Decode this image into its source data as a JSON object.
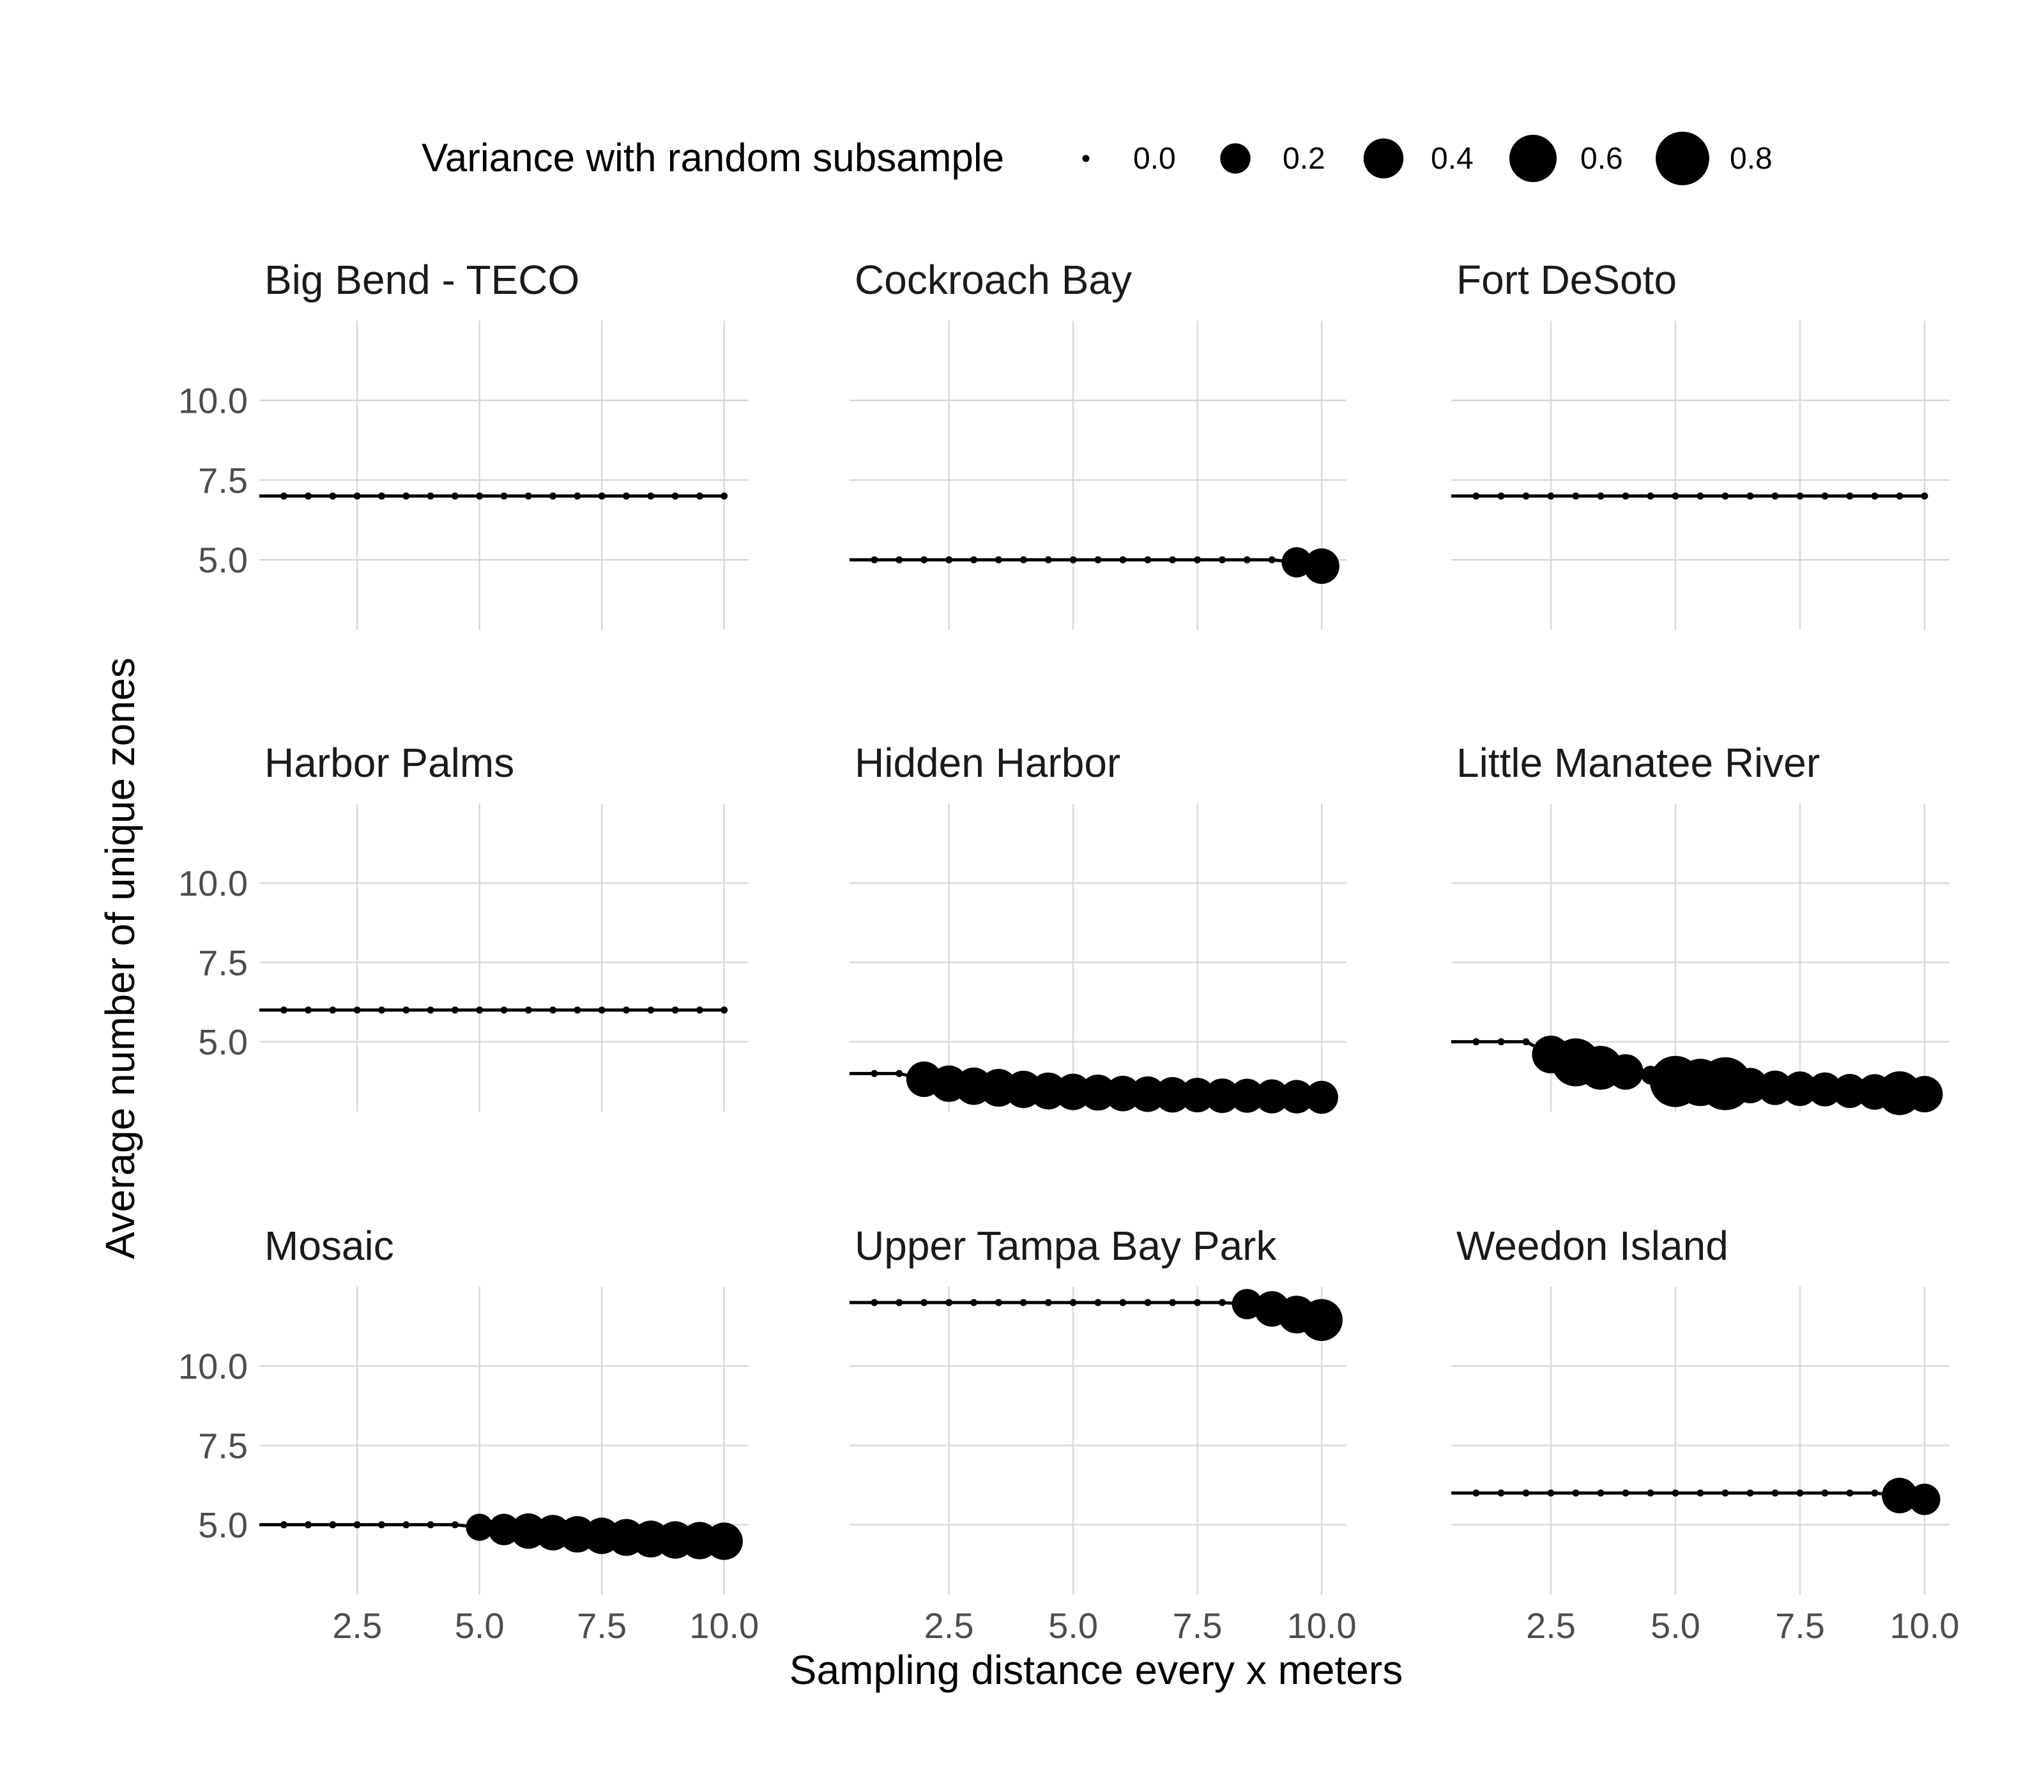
{
  "chart_data": {
    "type": "scatter",
    "facet_layout": "3x3",
    "xlabel": "Sampling distance every x meters",
    "ylabel": "Average number of unique zones",
    "x_ticks": [
      "2.5",
      "5.0",
      "7.5",
      "10.0"
    ],
    "y_ticks": [
      "5.0",
      "7.5",
      "10.0"
    ],
    "xlim": [
      0.5,
      10.5
    ],
    "ylim": [
      2.8,
      12.5
    ],
    "grid": true,
    "legend": {
      "title": "Variance with random subsample",
      "placement": "top",
      "breaks": [
        "0.0",
        "0.2",
        "0.4",
        "0.6",
        "0.8"
      ],
      "values": [
        0.0,
        0.2,
        0.4,
        0.6,
        0.8
      ]
    },
    "x": [
      0.5,
      1,
      1.5,
      2,
      2.5,
      3,
      3.5,
      4,
      4.5,
      5,
      5.5,
      6,
      6.5,
      7,
      7.5,
      8,
      8.5,
      9,
      9.5,
      10
    ],
    "facets": [
      {
        "title": "Big Bend - TECO",
        "y": [
          7,
          7,
          7,
          7,
          7,
          7,
          7,
          7,
          7,
          7,
          7,
          7,
          7,
          7,
          7,
          7,
          7,
          7,
          7,
          7
        ],
        "size": [
          0,
          0,
          0,
          0,
          0,
          0,
          0,
          0,
          0,
          0,
          0,
          0,
          0,
          0,
          0,
          0,
          0,
          0,
          0,
          0
        ]
      },
      {
        "title": "Cockroach Bay",
        "y": [
          5,
          5,
          5,
          5,
          5,
          5,
          5,
          5,
          5,
          5,
          5,
          5,
          5,
          5,
          5,
          5,
          5,
          5,
          4.92,
          4.8
        ],
        "size": [
          0,
          0,
          0,
          0,
          0,
          0,
          0,
          0,
          0,
          0,
          0,
          0,
          0,
          0,
          0,
          0,
          0,
          0,
          0.2,
          0.3
        ]
      },
      {
        "title": "Fort DeSoto",
        "y": [
          7,
          7,
          7,
          7,
          7,
          7,
          7,
          7,
          7,
          7,
          7,
          7,
          7,
          7,
          7,
          7,
          7,
          7,
          7,
          7
        ],
        "size": [
          0,
          0,
          0,
          0,
          0,
          0,
          0,
          0,
          0,
          0,
          0,
          0,
          0,
          0,
          0,
          0,
          0,
          0,
          0,
          0
        ]
      },
      {
        "title": "Harbor Palms",
        "y": [
          6,
          6,
          6,
          6,
          6,
          6,
          6,
          6,
          6,
          6,
          6,
          6,
          6,
          6,
          6,
          6,
          6,
          6,
          6,
          6
        ],
        "size": [
          0,
          0,
          0,
          0,
          0,
          0,
          0,
          0,
          0,
          0,
          0,
          0,
          0,
          0,
          0,
          0,
          0,
          0,
          0,
          0
        ]
      },
      {
        "title": "Hidden Harbor",
        "y": [
          4,
          4,
          4,
          3.82,
          3.68,
          3.6,
          3.55,
          3.5,
          3.45,
          3.42,
          3.4,
          3.37,
          3.35,
          3.33,
          3.32,
          3.3,
          3.3,
          3.28,
          3.27,
          3.25
        ],
        "size": [
          0,
          0,
          0,
          0.3,
          0.32,
          0.34,
          0.35,
          0.34,
          0.33,
          0.32,
          0.31,
          0.3,
          0.3,
          0.3,
          0.28,
          0.28,
          0.27,
          0.27,
          0.26,
          0.25
        ]
      },
      {
        "title": "Little Manatee River",
        "y": [
          5,
          5,
          5,
          5,
          4.6,
          4.35,
          4.18,
          4.05,
          3.95,
          3.85,
          3.75,
          3.72,
          3.68,
          3.62,
          3.55,
          3.52,
          3.5,
          3.45,
          3.42,
          3.38,
          3.35
        ],
        "x": [
          0.5,
          1,
          1.5,
          2,
          2.5,
          3,
          3.5,
          4,
          4.5,
          4.8,
          5,
          5.5,
          6,
          6.5,
          7,
          7.5,
          8,
          8.5,
          9,
          9.5,
          10
        ],
        "size": [
          0,
          0,
          0,
          0,
          0.35,
          0.62,
          0.5,
          0.3,
          0.05,
          0.08,
          0.72,
          0.6,
          0.78,
          0.3,
          0.28,
          0.28,
          0.27,
          0.27,
          0.3,
          0.5,
          0.32
        ]
      },
      {
        "title": "Mosaic",
        "y": [
          5,
          5,
          5,
          5,
          5,
          5,
          5,
          5,
          5,
          4.92,
          4.85,
          4.8,
          4.75,
          4.7,
          4.65,
          4.6,
          4.55,
          4.52,
          4.5,
          4.48
        ],
        "size": [
          0,
          0,
          0,
          0,
          0,
          0,
          0,
          0,
          0,
          0.15,
          0.22,
          0.3,
          0.3,
          0.32,
          0.32,
          0.33,
          0.33,
          0.34,
          0.34,
          0.34
        ]
      },
      {
        "title": "Upper Tampa Bay Park",
        "y": [
          12,
          12,
          12,
          12,
          12,
          12,
          12,
          12,
          12,
          12,
          12,
          12,
          12,
          12,
          12,
          12,
          11.95,
          11.8,
          11.62,
          11.45
        ],
        "size": [
          0,
          0,
          0,
          0,
          0,
          0,
          0,
          0,
          0,
          0,
          0,
          0,
          0,
          0,
          0,
          0,
          0.2,
          0.3,
          0.35,
          0.45
        ]
      },
      {
        "title": "Weedon Island",
        "y": [
          6,
          6,
          6,
          6,
          6,
          6,
          6,
          6,
          6,
          6,
          6,
          6,
          6,
          6,
          6,
          6,
          6,
          6,
          5.92,
          5.8
        ],
        "size": [
          0,
          0,
          0,
          0,
          0,
          0,
          0,
          0,
          0,
          0,
          0,
          0,
          0,
          0,
          0,
          0,
          0,
          0,
          0.3,
          0.22
        ]
      }
    ]
  }
}
